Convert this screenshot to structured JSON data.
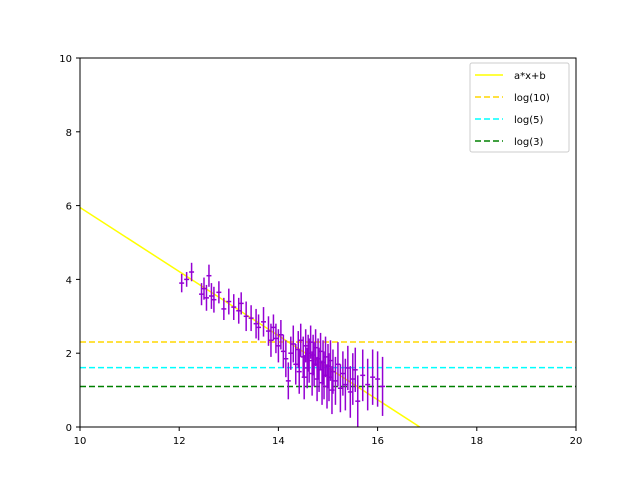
{
  "chart_data": {
    "type": "scatter",
    "title": "",
    "xlabel": "",
    "ylabel": "",
    "xlim": [
      10,
      20
    ],
    "ylim": [
      0,
      10
    ],
    "xticks": [
      10,
      12,
      14,
      16,
      18,
      20
    ],
    "yticks": [
      0,
      2,
      4,
      6,
      8,
      10
    ],
    "grid": false,
    "legend_position": "top-right",
    "series": [
      {
        "name": "a*x+b",
        "kind": "line",
        "style": "solid",
        "color": "#ffff00",
        "x": [
          10,
          16.85
        ],
        "y": [
          5.95,
          0
        ]
      },
      {
        "name": "log(10)",
        "kind": "hline",
        "style": "dashed",
        "color": "#ffd700",
        "y": 2.303
      },
      {
        "name": "log(5)",
        "kind": "hline",
        "style": "dashed",
        "color": "#00ffff",
        "y": 1.609
      },
      {
        "name": "log(3)",
        "kind": "hline",
        "style": "dashed",
        "color": "#008000",
        "y": 1.099
      }
    ],
    "points": {
      "color": "#9400d3",
      "data": [
        [
          12.05,
          3.9,
          0.25,
          0.05
        ],
        [
          12.15,
          4.0,
          0.2,
          0.05
        ],
        [
          12.25,
          4.2,
          0.25,
          0.05
        ],
        [
          12.45,
          3.6,
          0.3,
          0.05
        ],
        [
          12.5,
          3.75,
          0.3,
          0.05
        ],
        [
          12.55,
          3.5,
          0.35,
          0.05
        ],
        [
          12.6,
          4.1,
          0.3,
          0.05
        ],
        [
          12.65,
          3.55,
          0.35,
          0.05
        ],
        [
          12.7,
          3.45,
          0.35,
          0.05
        ],
        [
          12.8,
          3.65,
          0.3,
          0.05
        ],
        [
          12.9,
          3.2,
          0.3,
          0.05
        ],
        [
          13.0,
          3.4,
          0.35,
          0.05
        ],
        [
          13.1,
          3.25,
          0.35,
          0.05
        ],
        [
          13.2,
          3.15,
          0.35,
          0.05
        ],
        [
          13.25,
          3.35,
          0.3,
          0.05
        ],
        [
          13.35,
          3.0,
          0.4,
          0.05
        ],
        [
          13.45,
          2.95,
          0.35,
          0.05
        ],
        [
          13.55,
          2.8,
          0.4,
          0.05
        ],
        [
          13.6,
          2.7,
          0.35,
          0.05
        ],
        [
          13.7,
          2.85,
          0.4,
          0.05
        ],
        [
          13.8,
          2.6,
          0.4,
          0.05
        ],
        [
          13.85,
          2.35,
          0.45,
          0.05
        ],
        [
          13.9,
          2.7,
          0.35,
          0.05
        ],
        [
          13.95,
          2.4,
          0.4,
          0.05
        ],
        [
          14.0,
          2.2,
          0.45,
          0.05
        ],
        [
          14.05,
          2.5,
          0.4,
          0.05
        ],
        [
          14.1,
          2.05,
          0.45,
          0.05
        ],
        [
          14.15,
          1.85,
          0.5,
          0.05
        ],
        [
          14.2,
          1.25,
          0.5,
          0.05
        ],
        [
          14.25,
          2.0,
          0.45,
          0.05
        ],
        [
          14.3,
          2.25,
          0.5,
          0.05
        ],
        [
          14.35,
          1.7,
          0.55,
          0.05
        ],
        [
          14.4,
          2.1,
          0.5,
          0.05
        ],
        [
          14.42,
          1.5,
          0.6,
          0.05
        ],
        [
          14.45,
          2.35,
          0.45,
          0.05
        ],
        [
          14.5,
          1.9,
          0.55,
          0.05
        ],
        [
          14.52,
          1.35,
          0.6,
          0.05
        ],
        [
          14.55,
          2.2,
          0.45,
          0.05
        ],
        [
          14.58,
          1.6,
          0.55,
          0.05
        ],
        [
          14.6,
          2.0,
          0.5,
          0.05
        ],
        [
          14.62,
          1.8,
          0.6,
          0.05
        ],
        [
          14.65,
          2.3,
          0.45,
          0.05
        ],
        [
          14.68,
          1.45,
          0.6,
          0.05
        ],
        [
          14.7,
          1.95,
          0.55,
          0.05
        ],
        [
          14.72,
          1.7,
          0.6,
          0.05
        ],
        [
          14.75,
          2.15,
          0.5,
          0.05
        ],
        [
          14.78,
          1.3,
          0.6,
          0.05
        ],
        [
          14.8,
          1.85,
          0.55,
          0.05
        ],
        [
          14.82,
          1.55,
          0.6,
          0.05
        ],
        [
          14.85,
          2.05,
          0.5,
          0.05
        ],
        [
          14.88,
          1.2,
          0.6,
          0.05
        ],
        [
          14.9,
          1.75,
          0.6,
          0.05
        ],
        [
          14.92,
          1.4,
          0.65,
          0.05
        ],
        [
          14.95,
          1.9,
          0.55,
          0.05
        ],
        [
          14.98,
          1.1,
          0.6,
          0.05
        ],
        [
          15.0,
          1.65,
          0.6,
          0.05
        ],
        [
          15.02,
          1.35,
          0.65,
          0.05
        ],
        [
          15.05,
          1.8,
          0.55,
          0.05
        ],
        [
          15.08,
          1.0,
          0.65,
          0.05
        ],
        [
          15.1,
          1.5,
          0.6,
          0.05
        ],
        [
          15.15,
          1.25,
          0.65,
          0.05
        ],
        [
          15.2,
          1.7,
          0.6,
          0.05
        ],
        [
          15.25,
          1.05,
          0.65,
          0.05
        ],
        [
          15.3,
          1.45,
          0.6,
          0.05
        ],
        [
          15.35,
          1.15,
          0.7,
          0.05
        ],
        [
          15.4,
          1.6,
          0.6,
          0.05
        ],
        [
          15.45,
          0.95,
          0.7,
          0.05
        ],
        [
          15.5,
          1.3,
          0.7,
          0.05
        ],
        [
          15.55,
          1.55,
          0.6,
          0.05
        ],
        [
          15.6,
          0.7,
          0.7,
          0.05
        ],
        [
          15.7,
          1.4,
          0.7,
          0.05
        ],
        [
          15.8,
          1.15,
          0.7,
          0.05
        ],
        [
          15.9,
          1.35,
          0.75,
          0.05
        ],
        [
          16.0,
          1.3,
          0.75,
          0.05
        ],
        [
          16.1,
          1.1,
          0.8,
          0.05
        ]
      ]
    }
  },
  "colors": {
    "axes": "#000000",
    "background": "#ffffff",
    "points": "#9400d3"
  }
}
